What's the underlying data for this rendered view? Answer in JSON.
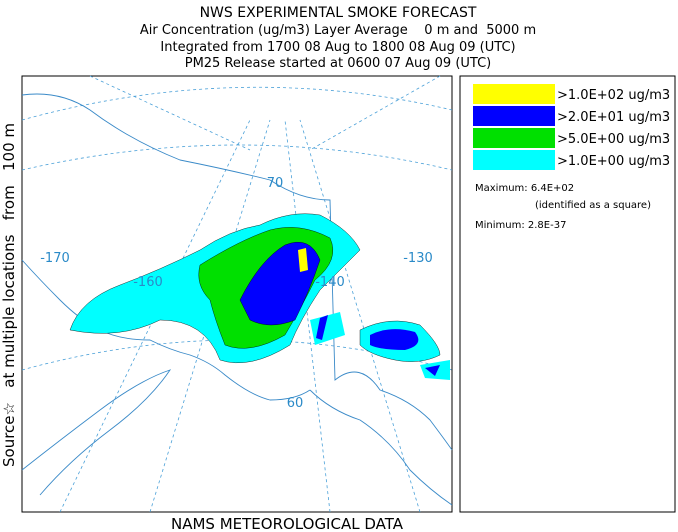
{
  "header": {
    "title": "NWS EXPERIMENTAL SMOKE FORECAST",
    "lines": [
      "Air Concentration (ug/m3) Layer Average    0 m and  5000 m",
      "Integrated from 1700 08 Aug to 1800 08 Aug 09 (UTC)",
      "PM25 Release started at 0600 07 Aug 09 (UTC)"
    ]
  },
  "legend": {
    "entries": [
      {
        "label": ">1.0E+02 ug/m3",
        "color": "#ffff00"
      },
      {
        "label": ">2.0E+01 ug/m3",
        "color": "#0000ff"
      },
      {
        "label": ">5.0E+00 ug/m3",
        "color": "#00e000"
      },
      {
        "label": ">1.0E+00 ug/m3",
        "color": "#00ffff"
      }
    ],
    "maximum": "Maximum: 6.4E+02",
    "max_note": "(identified as a square)",
    "minimum": "Minimum: 2.8E-37"
  },
  "side_label": "Source☆   at multiple locations   from   100 m",
  "footer": "NAMS METEOROLOGICAL DATA",
  "map_labels": [
    "-170",
    "-160",
    "-140",
    "-130",
    "70",
    "60"
  ]
}
